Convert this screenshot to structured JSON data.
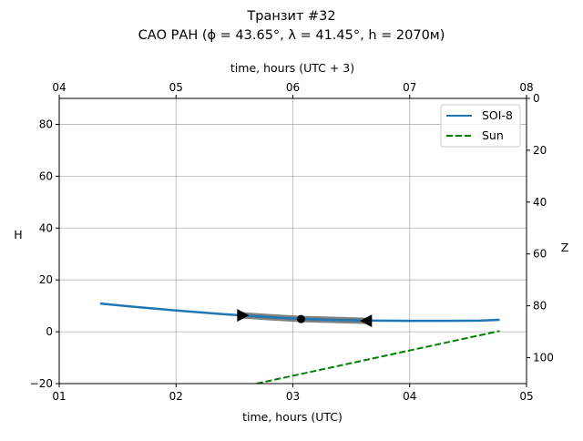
{
  "chart_data": {
    "type": "line",
    "title": "Транзит #32",
    "subtitle": "САО РАН (ϕ = 43.65°, λ = 41.45°, h = 2070м)",
    "xlabel": "time, hours (UTC)",
    "x2label": "time, hours (UTC + 3)",
    "ylabel": "H",
    "y2label": "Z",
    "xlim": [
      1,
      5
    ],
    "x2lim": [
      4,
      8
    ],
    "ylim": [
      -20,
      90
    ],
    "y2lim": [
      110,
      0
    ],
    "xticks": [
      {
        "v": 1,
        "label": "01"
      },
      {
        "v": 2,
        "label": "02"
      },
      {
        "v": 3,
        "label": "03"
      },
      {
        "v": 4,
        "label": "04"
      },
      {
        "v": 5,
        "label": "05"
      }
    ],
    "x2ticks": [
      {
        "v": 4,
        "label": "04"
      },
      {
        "v": 5,
        "label": "05"
      },
      {
        "v": 6,
        "label": "06"
      },
      {
        "v": 7,
        "label": "07"
      },
      {
        "v": 8,
        "label": "08"
      }
    ],
    "yticks": [
      {
        "v": -20,
        "label": "−20"
      },
      {
        "v": 0,
        "label": "0"
      },
      {
        "v": 20,
        "label": "20"
      },
      {
        "v": 40,
        "label": "40"
      },
      {
        "v": 60,
        "label": "60"
      },
      {
        "v": 80,
        "label": "80"
      }
    ],
    "y2ticks": [
      {
        "v": 0,
        "label": "0"
      },
      {
        "v": 20,
        "label": "20"
      },
      {
        "v": 40,
        "label": "40"
      },
      {
        "v": 60,
        "label": "60"
      },
      {
        "v": 80,
        "label": "80"
      },
      {
        "v": 100,
        "label": "100"
      }
    ],
    "grid": true,
    "legend_position": "top-right",
    "series": [
      {
        "name": "SOI-8",
        "color": "#1f77b4",
        "style": "solid",
        "x": [
          1.35,
          1.6,
          2.0,
          2.4,
          2.8,
          3.07,
          3.4,
          3.7,
          4.0,
          4.3,
          4.6,
          4.77
        ],
        "y": [
          10.9,
          9.8,
          8.2,
          6.8,
          5.6,
          4.9,
          4.5,
          4.3,
          4.2,
          4.2,
          4.3,
          4.6
        ]
      },
      {
        "name": "Sun",
        "color": "#008000",
        "style": "dashed",
        "x": [
          2.69,
          4.77
        ],
        "y": [
          -20,
          0.3
        ]
      }
    ],
    "transit": {
      "color": "#808080",
      "x": [
        2.57,
        2.8,
        3.07,
        3.4,
        3.63
      ],
      "y": [
        6.3,
        5.6,
        4.9,
        4.5,
        4.2
      ],
      "start": {
        "x": 2.57,
        "y": 6.3
      },
      "center": {
        "x": 3.07,
        "y": 4.9
      },
      "end": {
        "x": 3.63,
        "y": 4.2
      }
    }
  }
}
